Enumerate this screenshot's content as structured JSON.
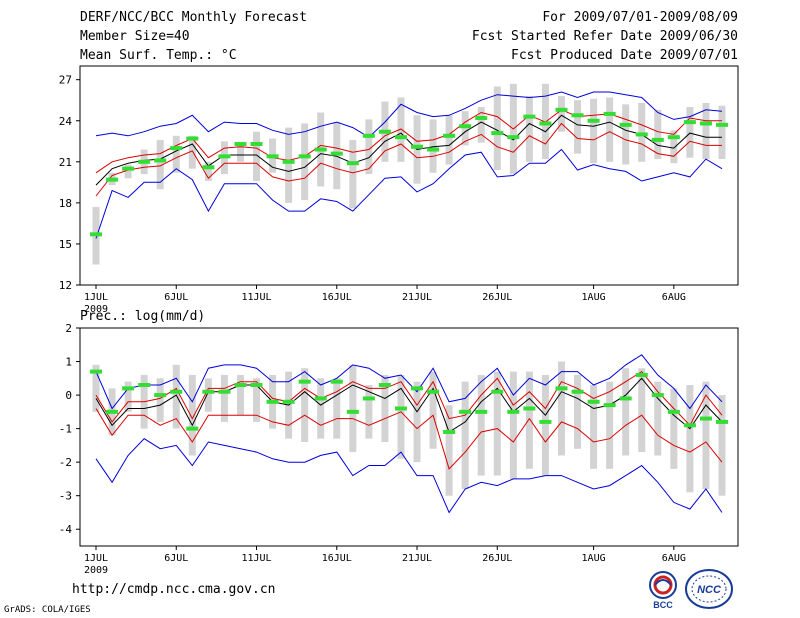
{
  "header": {
    "title": "DERF/NCC/BCC Monthly Forecast",
    "member_size": "Member Size=40",
    "variable": "Mean Surf. Temp.: °C",
    "period": "For 2009/07/01-2009/08/09",
    "started": "Fcst Started Refer Date 2009/06/30",
    "produced": "Fcst Produced Date 2009/07/01"
  },
  "precip_label": "Prec.: log(mm/d)",
  "footer": {
    "url": "http://cmdp.ncc.cma.gov.cn",
    "credit": "GrADS: COLA/IGES"
  },
  "logos": {
    "bcc": "BCC",
    "ncc": "NCC"
  },
  "colors": {
    "envelope": "#0000dd",
    "spread": "#dd0000",
    "mean": "#000000",
    "obs": "#33dd33",
    "bar": "#d3d3d3"
  },
  "chart_data": [
    {
      "type": "line",
      "title": "Mean Surf. Temp.: °C",
      "ylim": [
        12,
        28
      ],
      "yticks": [
        12,
        15,
        18,
        21,
        24,
        27
      ],
      "xtick_labels": [
        "1JUL",
        "6JUL",
        "11JUL",
        "16JUL",
        "21JUL",
        "26JUL",
        "1AUG",
        "6AUG"
      ],
      "xtick_days": [
        1,
        6,
        11,
        16,
        21,
        26,
        32,
        37
      ],
      "year_label": "2009",
      "days": 40,
      "series": [
        {
          "name": "max",
          "values": [
            22.9,
            23.1,
            22.9,
            23.2,
            23.6,
            23.8,
            24.4,
            23.2,
            23.9,
            23.8,
            23.8,
            23.3,
            23.0,
            23.2,
            23.6,
            23.9,
            23.5,
            22.8,
            23.9,
            25.2,
            24.6,
            24.3,
            24.4,
            24.9,
            25.5,
            25.9,
            25.8,
            25.7,
            25.8,
            26.1,
            25.7,
            26.1,
            26.1,
            25.9,
            25.7,
            24.6,
            24.1,
            24.3,
            24.8,
            24.7
          ]
        },
        {
          "name": "upper",
          "values": [
            20.2,
            21.0,
            21.3,
            21.5,
            21.6,
            22.2,
            22.7,
            21.3,
            22.0,
            22.1,
            22.0,
            21.3,
            21.1,
            21.4,
            22.2,
            22.0,
            21.7,
            21.9,
            22.9,
            23.4,
            22.5,
            22.6,
            23.0,
            23.9,
            24.6,
            24.3,
            23.4,
            24.4,
            23.9,
            24.8,
            24.3,
            24.4,
            24.5,
            24.1,
            23.7,
            23.2,
            23.0,
            24.2,
            24.0,
            24.0
          ]
        },
        {
          "name": "mean",
          "values": [
            19.3,
            20.5,
            20.9,
            21.1,
            21.2,
            21.8,
            22.3,
            20.7,
            21.5,
            21.5,
            21.5,
            20.6,
            20.3,
            20.6,
            21.6,
            21.4,
            20.9,
            21.3,
            22.5,
            23.1,
            21.9,
            22.1,
            22.2,
            23.2,
            23.9,
            23.3,
            22.6,
            23.8,
            23.2,
            24.4,
            23.7,
            23.6,
            23.9,
            23.3,
            23.0,
            22.2,
            22.0,
            23.1,
            22.8,
            22.8
          ]
        },
        {
          "name": "lower",
          "values": [
            18.5,
            20.0,
            20.4,
            20.6,
            20.7,
            21.3,
            21.8,
            19.8,
            20.9,
            20.9,
            20.9,
            19.9,
            19.6,
            19.8,
            20.9,
            20.5,
            20.2,
            20.5,
            21.8,
            22.3,
            21.3,
            21.4,
            21.7,
            22.5,
            23.0,
            22.1,
            21.7,
            22.9,
            22.3,
            23.8,
            22.7,
            22.6,
            23.2,
            22.6,
            22.3,
            21.6,
            21.4,
            22.5,
            22.2,
            22.2
          ]
        },
        {
          "name": "min",
          "values": [
            15.4,
            18.9,
            18.4,
            19.5,
            19.5,
            20.5,
            19.7,
            17.4,
            19.4,
            19.4,
            19.4,
            18.2,
            17.4,
            17.4,
            18.3,
            18.1,
            17.4,
            18.6,
            19.8,
            19.9,
            18.8,
            19.4,
            20.5,
            21.5,
            21.7,
            19.9,
            20.0,
            20.9,
            20.9,
            21.9,
            20.4,
            20.8,
            20.5,
            20.3,
            19.6,
            19.9,
            20.2,
            19.9,
            21.2,
            20.5
          ]
        },
        {
          "name": "bar_top",
          "values": [
            17.7,
            20.2,
            20.8,
            21.9,
            22.6,
            22.9,
            22.9,
            21.0,
            22.5,
            22.4,
            23.2,
            22.7,
            23.5,
            23.8,
            24.6,
            23.9,
            22.6,
            24.1,
            25.4,
            25.7,
            24.4,
            24.1,
            24.4,
            24.7,
            25.0,
            26.5,
            26.7,
            25.8,
            26.7,
            25.8,
            25.5,
            25.6,
            25.7,
            25.2,
            25.3,
            24.8,
            23.3,
            25.0,
            25.3,
            25.1
          ]
        },
        {
          "name": "bar_bottom",
          "values": [
            13.5,
            19.3,
            19.8,
            20.1,
            19.0,
            20.2,
            20.5,
            19.6,
            20.1,
            21.0,
            19.6,
            20.2,
            18.0,
            18.2,
            19.2,
            19.0,
            17.6,
            20.1,
            21.0,
            21.0,
            19.4,
            20.2,
            20.8,
            22.2,
            22.4,
            20.4,
            20.1,
            21.0,
            21.2,
            23.2,
            21.6,
            20.9,
            21.0,
            20.8,
            21.0,
            21.2,
            20.9,
            21.3,
            21.2,
            21.2
          ]
        },
        {
          "name": "observed",
          "values": [
            15.7,
            19.7,
            20.5,
            21.0,
            21.1,
            22.0,
            22.7,
            20.6,
            21.4,
            22.3,
            22.3,
            21.4,
            21.0,
            21.4,
            21.9,
            21.6,
            20.9,
            22.9,
            23.2,
            22.8,
            22.1,
            21.9,
            22.9,
            23.6,
            24.2,
            23.1,
            22.8,
            24.3,
            23.8,
            24.8,
            24.4,
            24.0,
            24.5,
            23.7,
            23.0,
            22.6,
            22.8,
            23.9,
            23.8,
            23.7
          ]
        }
      ]
    },
    {
      "type": "line",
      "title": "Prec.: log(mm/d)",
      "ylim": [
        -4.5,
        2
      ],
      "yticks": [
        -4,
        -3,
        -2,
        -1,
        0,
        1,
        2
      ],
      "xtick_labels": [
        "1JUL",
        "6JUL",
        "11JUL",
        "16JUL",
        "21JUL",
        "26JUL",
        "1AUG",
        "6AUG"
      ],
      "xtick_days": [
        1,
        6,
        11,
        16,
        21,
        26,
        32,
        37
      ],
      "year_label": "2009",
      "days": 40,
      "series": [
        {
          "name": "max",
          "values": [
            0.7,
            -0.4,
            0.2,
            0.3,
            0.3,
            0.5,
            -0.2,
            0.8,
            0.9,
            0.9,
            0.8,
            0.4,
            0.4,
            0.7,
            0.3,
            0.5,
            0.9,
            0.8,
            0.5,
            0.6,
            0.1,
            0.8,
            -0.2,
            -0.1,
            0.4,
            0.8,
            0.0,
            0.5,
            0.3,
            0.7,
            0.7,
            0.3,
            0.5,
            0.9,
            1.2,
            0.6,
            0.2,
            -0.4,
            0.3,
            -0.2
          ]
        },
        {
          "name": "upper",
          "values": [
            0.0,
            -0.8,
            -0.2,
            -0.2,
            -0.1,
            0.2,
            -0.7,
            0.2,
            0.2,
            0.4,
            0.4,
            -0.1,
            -0.2,
            0.2,
            -0.1,
            0.1,
            0.4,
            0.2,
            0.2,
            0.4,
            -0.3,
            0.4,
            -0.7,
            -0.6,
            0.0,
            0.5,
            -0.3,
            0.1,
            -0.4,
            0.4,
            0.2,
            -0.1,
            0.1,
            0.4,
            0.7,
            0.1,
            -0.4,
            -0.9,
            0.0,
            -0.6
          ]
        },
        {
          "name": "mean",
          "values": [
            -0.1,
            -0.9,
            -0.4,
            -0.4,
            -0.3,
            0.0,
            -0.9,
            0.1,
            0.1,
            0.3,
            0.3,
            -0.2,
            -0.3,
            0.1,
            -0.3,
            0.0,
            0.3,
            0.1,
            -0.1,
            0.2,
            -0.5,
            0.2,
            -1.1,
            -0.8,
            -0.2,
            0.2,
            -0.5,
            -0.1,
            -0.6,
            0.1,
            -0.1,
            -0.4,
            -0.3,
            0.0,
            0.5,
            -0.1,
            -0.6,
            -1.0,
            -0.3,
            -0.8
          ]
        },
        {
          "name": "lower",
          "values": [
            -0.4,
            -1.2,
            -0.6,
            -0.6,
            -0.9,
            -0.7,
            -1.4,
            -0.6,
            -0.6,
            -0.6,
            -0.6,
            -0.8,
            -0.9,
            -0.6,
            -0.9,
            -0.7,
            -0.7,
            -0.9,
            -0.7,
            -0.5,
            -1.0,
            -0.6,
            -2.2,
            -1.7,
            -1.1,
            -1.0,
            -1.4,
            -0.7,
            -1.4,
            -0.8,
            -1.0,
            -1.4,
            -1.3,
            -0.9,
            -0.6,
            -1.2,
            -1.5,
            -1.7,
            -1.4,
            -2.0
          ]
        },
        {
          "name": "min",
          "values": [
            -1.9,
            -2.6,
            -1.8,
            -1.3,
            -1.6,
            -1.5,
            -2.1,
            -1.4,
            -1.5,
            -1.6,
            -1.7,
            -1.9,
            -2.0,
            -2.0,
            -1.8,
            -1.7,
            -2.4,
            -2.1,
            -2.1,
            -1.7,
            -2.4,
            -2.4,
            -3.5,
            -2.8,
            -2.6,
            -2.7,
            -2.5,
            -2.5,
            -2.4,
            -2.4,
            -2.6,
            -2.8,
            -2.7,
            -2.4,
            -2.1,
            -2.6,
            -3.2,
            -3.4,
            -2.8,
            -3.5
          ]
        },
        {
          "name": "bar_top",
          "values": [
            0.9,
            0.2,
            0.4,
            0.6,
            0.5,
            0.9,
            0.6,
            0.5,
            0.6,
            0.6,
            0.5,
            0.6,
            0.7,
            0.8,
            0.5,
            0.5,
            0.9,
            0.3,
            0.6,
            0.6,
            0.4,
            0.7,
            -0.3,
            0.4,
            0.6,
            0.7,
            0.7,
            0.7,
            0.6,
            1.0,
            0.6,
            0.3,
            0.4,
            0.8,
            0.8,
            0.4,
            0.2,
            0.3,
            0.4,
            0.0
          ]
        },
        {
          "name": "bar_bottom",
          "values": [
            -0.5,
            -1.2,
            -0.5,
            -1.0,
            -0.8,
            -1.0,
            -1.8,
            -0.5,
            -0.8,
            -0.6,
            -0.8,
            -1.0,
            -1.3,
            -1.4,
            -1.3,
            -1.3,
            -1.7,
            -1.3,
            -1.4,
            -1.9,
            -2.0,
            -1.6,
            -3.0,
            -2.8,
            -2.4,
            -2.4,
            -2.5,
            -2.2,
            -2.4,
            -1.8,
            -1.6,
            -2.2,
            -2.2,
            -1.8,
            -1.7,
            -1.8,
            -2.2,
            -2.9,
            -2.8,
            -3.0
          ]
        },
        {
          "name": "observed",
          "values": [
            0.7,
            -0.5,
            0.2,
            0.3,
            0.0,
            0.1,
            -1.0,
            0.1,
            0.1,
            0.3,
            0.3,
            -0.2,
            -0.2,
            0.4,
            -0.1,
            0.4,
            -0.5,
            -0.1,
            0.3,
            -0.4,
            0.2,
            0.1,
            -1.1,
            -0.5,
            -0.5,
            0.1,
            -0.5,
            -0.4,
            -0.8,
            0.2,
            0.1,
            -0.2,
            -0.3,
            -0.1,
            0.6,
            0.0,
            -0.5,
            -0.9,
            -0.7,
            -0.8
          ]
        }
      ]
    }
  ]
}
